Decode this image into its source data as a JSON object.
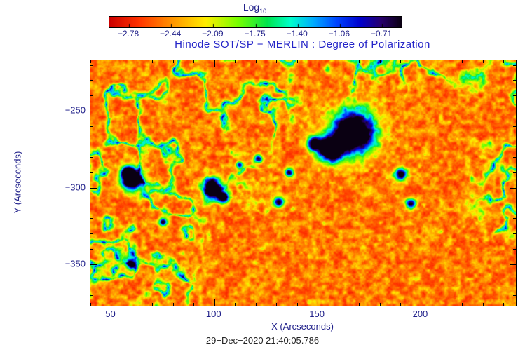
{
  "colorbar": {
    "label": "Log",
    "label_sub": "10",
    "ticks": [
      "−2.78",
      "−2.44",
      "−2.09",
      "−1.75",
      "−1.40",
      "−1.06",
      "−0.71"
    ]
  },
  "title": "Hinode SOT/SP − MERLIN : Degree of Polarization",
  "axes": {
    "x_label": "X (Arcseconds)",
    "y_label": "Y (Arcseconds)",
    "x_ticks": [
      "50",
      "100",
      "150",
      "200"
    ],
    "y_ticks": [
      "−250",
      "−300",
      "−350"
    ]
  },
  "caption": "29−Dec−2020 21:40:05.786",
  "chart_data": {
    "type": "heatmap",
    "title": "Hinode SOT/SP − MERLIN : Degree of Polarization",
    "xlabel": "X (Arcseconds)",
    "ylabel": "Y (Arcseconds)",
    "colorbar_label": "Log10",
    "colorbar_tick_values": [
      -2.78,
      -2.44,
      -2.09,
      -1.75,
      -1.4,
      -1.06,
      -0.71
    ],
    "x_range": [
      40,
      246
    ],
    "y_range": [
      -377,
      -217
    ],
    "x_tick_values": [
      50,
      100,
      150,
      200
    ],
    "y_tick_values": [
      -250,
      -300,
      -350
    ],
    "minor_tick_step": 10,
    "grid": false,
    "background_value_range": [
      -2.78,
      -2.2
    ],
    "colormap": [
      {
        "t": 0.0,
        "c": "#cc0000"
      },
      {
        "t": 0.1,
        "c": "#ff3300"
      },
      {
        "t": 0.22,
        "c": "#ff9900"
      },
      {
        "t": 0.33,
        "c": "#ffee00"
      },
      {
        "t": 0.44,
        "c": "#77ff00"
      },
      {
        "t": 0.54,
        "c": "#00e44c"
      },
      {
        "t": 0.62,
        "c": "#00ffcc"
      },
      {
        "t": 0.7,
        "c": "#00aaff"
      },
      {
        "t": 0.78,
        "c": "#0044ff"
      },
      {
        "t": 0.86,
        "c": "#0000cc"
      },
      {
        "t": 0.93,
        "c": "#28006e"
      },
      {
        "t": 1.0,
        "c": "#0a0012"
      }
    ],
    "features": [
      {
        "x": 167,
        "y": -264,
        "r": 10.0,
        "amp": 1.4
      },
      {
        "x": 156,
        "y": -275,
        "r": 5.7,
        "amp": 1.25
      },
      {
        "x": 148,
        "y": -271,
        "r": 3.4,
        "amp": 1.0
      },
      {
        "x": 60,
        "y": -295,
        "r": 5.0,
        "amp": 1.25
      },
      {
        "x": 58,
        "y": -290,
        "r": 3.0,
        "amp": 1.1
      },
      {
        "x": 99,
        "y": -300,
        "r": 4.4,
        "amp": 1.15
      },
      {
        "x": 104,
        "y": -306,
        "r": 2.7,
        "amp": 1.0
      },
      {
        "x": 131,
        "y": -309,
        "r": 2.4,
        "amp": 0.95
      },
      {
        "x": 136,
        "y": -290,
        "r": 2.0,
        "amp": 0.9
      },
      {
        "x": 190,
        "y": -291,
        "r": 3.0,
        "amp": 0.95
      },
      {
        "x": 195,
        "y": -310,
        "r": 2.4,
        "amp": 0.9
      },
      {
        "x": 60,
        "y": -350,
        "r": 2.4,
        "amp": 0.9
      },
      {
        "x": 75,
        "y": -322,
        "r": 2.0,
        "amp": 0.85
      },
      {
        "x": 121,
        "y": -281,
        "r": 2.0,
        "amp": 0.85
      },
      {
        "x": 112,
        "y": -285,
        "r": 1.7,
        "amp": 0.8
      }
    ]
  }
}
